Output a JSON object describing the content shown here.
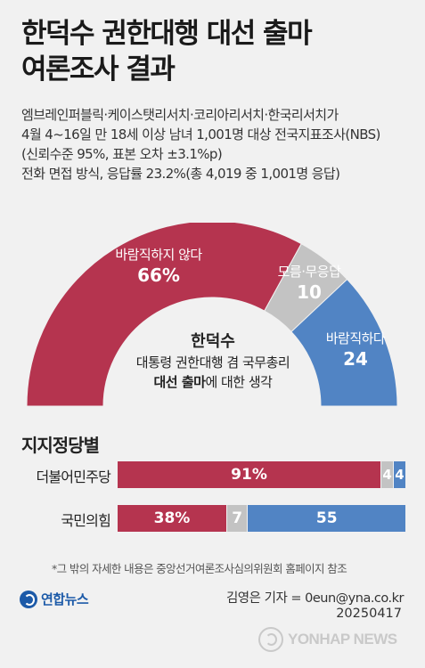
{
  "title": [
    "한덕수 권한대행 대선 출마",
    "여론조사 결과"
  ],
  "description": [
    "엠브레인퍼블릭·케이스탯리서치·코리아리서치·한국리서치가",
    "4월 4~16일 만 18세 이상 남녀 1,001명 대상 전국지표조사(NBS)",
    "(신뢰수준 95%, 표본 오차 ±3.1%p)",
    "전화 면접 방식, 응답률 23.2%(총 4,019 중 1,001명 응답)"
  ],
  "chart_data": [
    {
      "type": "pie",
      "variant": "half-donut",
      "center_label": {
        "line1": "한덕수",
        "line2": "대통령 권한대행 겸 국무총리",
        "line3_bold": "대선 출마",
        "line3_rest": "에 대한 생각"
      },
      "slices": [
        {
          "label": "바람직하지 않다",
          "value": 66,
          "value_text": "66%",
          "color": "#b5344f"
        },
        {
          "label": "모름·무응답",
          "value": 10,
          "value_text": "10",
          "color": "#c3c3c3"
        },
        {
          "label": "바람직하다",
          "value": 24,
          "value_text": "24",
          "color": "#5184c4"
        }
      ]
    },
    {
      "type": "bar",
      "orientation": "horizontal",
      "stacked": true,
      "normalized": true,
      "title": "지지정당별",
      "categories": [
        "더불어민주당",
        "국민의힘"
      ],
      "series": [
        {
          "values": [
            91,
            38
          ],
          "labels": [
            "91%",
            "38%"
          ],
          "color": "#b5344f"
        },
        {
          "values": [
            4,
            7
          ],
          "labels": [
            "4",
            "7"
          ],
          "color": "#c3c3c3"
        },
        {
          "values": [
            4,
            55
          ],
          "labels": [
            "4",
            "55"
          ],
          "color": "#5184c4"
        }
      ]
    }
  ],
  "note": "*그 밖의 자세한 내용은 중앙선거여론조사심의위원회 홈페이지 참조",
  "logo": {
    "icon": "yonhap-logo-icon",
    "text": "연합뉴스"
  },
  "author": "김영은 기자 = 0eun@yna.co.kr",
  "date": "20250417",
  "watermark": "YONHAP NEWS"
}
